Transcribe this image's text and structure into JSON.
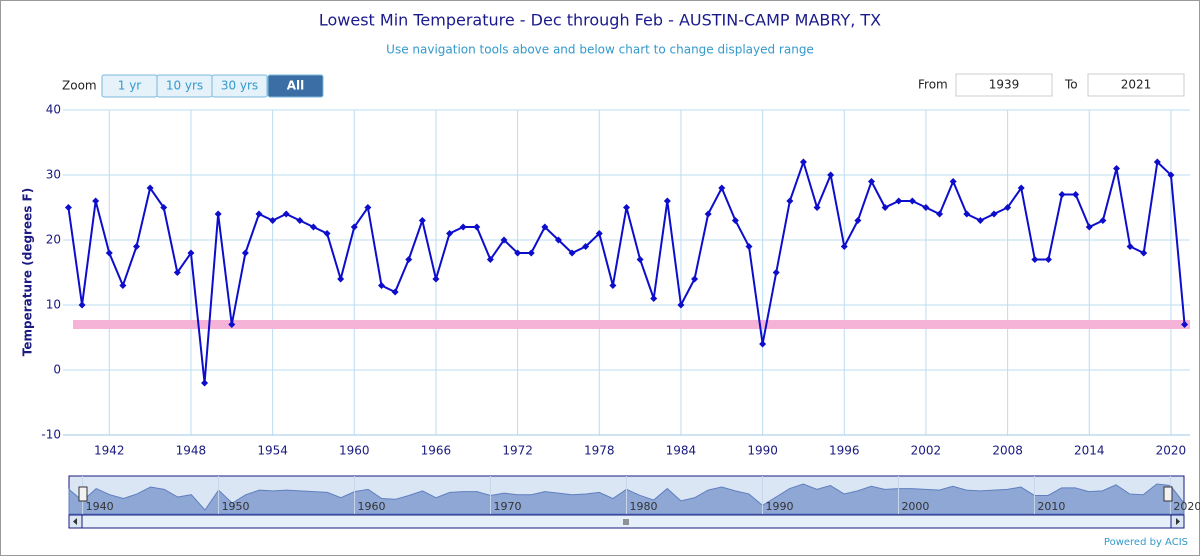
{
  "chart_data": {
    "type": "line",
    "title": "Lowest Min Temperature - Dec through Feb - AUSTIN-CAMP MABRY, TX",
    "subtitle": "Use navigation tools above and below chart to change displayed range",
    "y_label": "Temperature (degrees F)",
    "x": [
      1939,
      1940,
      1941,
      1942,
      1943,
      1944,
      1945,
      1946,
      1947,
      1948,
      1949,
      1950,
      1951,
      1952,
      1953,
      1954,
      1955,
      1956,
      1957,
      1958,
      1959,
      1960,
      1961,
      1962,
      1963,
      1964,
      1965,
      1966,
      1967,
      1968,
      1969,
      1970,
      1971,
      1972,
      1973,
      1974,
      1975,
      1976,
      1977,
      1978,
      1979,
      1980,
      1981,
      1982,
      1983,
      1984,
      1985,
      1986,
      1987,
      1988,
      1989,
      1990,
      1991,
      1992,
      1993,
      1994,
      1995,
      1996,
      1997,
      1998,
      1999,
      2000,
      2001,
      2002,
      2003,
      2004,
      2005,
      2006,
      2007,
      2008,
      2009,
      2010,
      2011,
      2012,
      2013,
      2014,
      2015,
      2016,
      2017,
      2018,
      2019,
      2020,
      2021
    ],
    "series": [
      {
        "color": "#0d0dcc",
        "values": [
          25,
          10,
          26,
          18,
          13,
          19,
          28,
          25,
          15,
          18,
          -2,
          24,
          7,
          18,
          24,
          23,
          24,
          23,
          22,
          21,
          14,
          22,
          25,
          13,
          12,
          17,
          23,
          14,
          21,
          22,
          22,
          17,
          20,
          18,
          18,
          22,
          20,
          18,
          19,
          21,
          13,
          25,
          17,
          11,
          26,
          10,
          14,
          24,
          28,
          23,
          19,
          4,
          15,
          26,
          32,
          25,
          30,
          19,
          23,
          29,
          25,
          26,
          26,
          25,
          24,
          29,
          24,
          23,
          24,
          25,
          28,
          17,
          17,
          27,
          27,
          22,
          23,
          31,
          19,
          18,
          32,
          30,
          7
        ]
      }
    ],
    "plot_line": {
      "value": 7,
      "color": "#f5b3d8"
    },
    "xlim": [
      1938.6,
      2021.4
    ],
    "xticks": [
      1942,
      1948,
      1954,
      1960,
      1966,
      1972,
      1978,
      1984,
      1990,
      1996,
      2002,
      2008,
      2014,
      2020
    ],
    "ylim": [
      -10,
      40
    ],
    "yticks": [
      -10,
      0,
      10,
      20,
      30,
      40
    ],
    "grid": true,
    "navigator_xticks": [
      1940,
      1950,
      1960,
      1970,
      1980,
      1990,
      2000,
      2010,
      2020
    ]
  },
  "ui": {
    "zoom_label": "Zoom",
    "zoom_buttons": [
      "1 yr",
      "10 yrs",
      "30 yrs",
      "All"
    ],
    "selected_button": 3,
    "from_label": "From",
    "from_value": "1939",
    "to_label": "To",
    "to_value": "2021",
    "credit": "Powered by ACIS"
  }
}
